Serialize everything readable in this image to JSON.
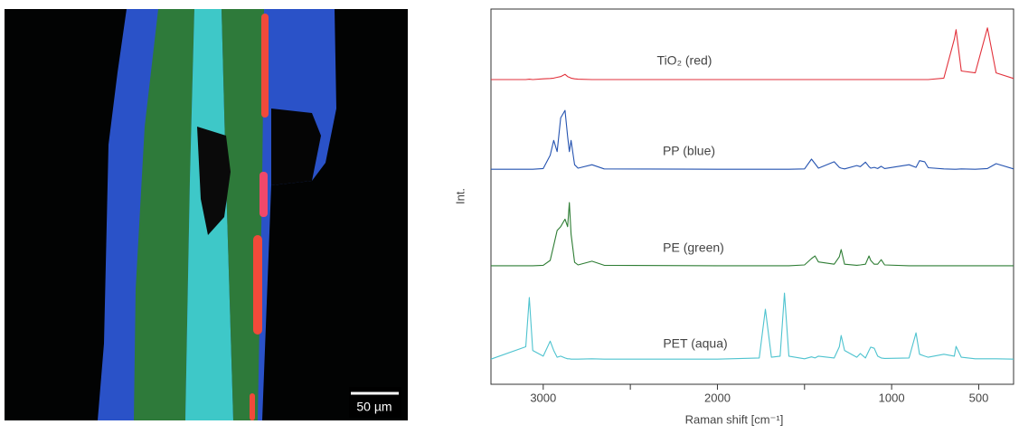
{
  "image": {
    "scale_bar": "50 µm"
  },
  "chart_data": {
    "type": "line",
    "xlabel": "Raman shift [cm⁻¹]",
    "ylabel": "Int.",
    "xlim": [
      3300,
      300
    ],
    "ylim": [
      0,
      100
    ],
    "xticks": [
      3000,
      2000,
      1000,
      500
    ],
    "xminorticks": [
      2500,
      1500
    ],
    "x": [
      3300,
      3100,
      3080,
      3060,
      3000,
      2960,
      2940,
      2920,
      2900,
      2875,
      2860,
      2850,
      2840,
      2820,
      2800,
      2720,
      2650,
      2000,
      1760,
      1725,
      1690,
      1640,
      1615,
      1590,
      1500,
      1460,
      1440,
      1420,
      1330,
      1300,
      1290,
      1270,
      1200,
      1180,
      1150,
      1130,
      1120,
      1100,
      1080,
      1060,
      1040,
      900,
      860,
      840,
      810,
      790,
      700,
      640,
      630,
      600,
      520,
      450,
      400,
      300
    ],
    "series": [
      {
        "name": "TiO₂ (red)",
        "color": "#e2323c",
        "values": [
          81.2,
          81.2,
          81.3,
          81.2,
          81.4,
          81.5,
          81.6,
          81.8,
          82.0,
          82.6,
          82.0,
          81.8,
          81.6,
          81.4,
          81.3,
          81.2,
          81.2,
          81.2,
          81.2,
          81.2,
          81.2,
          81.2,
          81.2,
          81.2,
          81.2,
          81.2,
          81.2,
          81.2,
          81.2,
          81.2,
          81.2,
          81.2,
          81.2,
          81.2,
          81.2,
          81.2,
          81.2,
          81.2,
          81.2,
          81.2,
          81.2,
          81.2,
          81.2,
          81.2,
          81.2,
          81.2,
          81.6,
          92.0,
          94.5,
          83.5,
          83.0,
          95.0,
          83.0,
          81.5
        ]
      },
      {
        "name": "PP (blue)",
        "color": "#2553b0",
        "values": [
          57.3,
          57.3,
          57.3,
          57.3,
          57.5,
          61.0,
          65.0,
          62.0,
          71.0,
          73.0,
          66.0,
          62.0,
          65.0,
          58.5,
          57.6,
          58.5,
          57.4,
          57.3,
          57.3,
          57.3,
          57.3,
          57.3,
          57.3,
          57.3,
          57.4,
          60.0,
          58.8,
          57.6,
          59.3,
          57.8,
          57.6,
          57.4,
          58.3,
          58.0,
          59.2,
          58.0,
          57.6,
          57.8,
          57.5,
          58.1,
          57.5,
          58.5,
          57.8,
          59.6,
          59.3,
          57.7,
          57.4,
          57.3,
          57.3,
          57.4,
          57.3,
          57.5,
          58.8,
          57.4
        ]
      },
      {
        "name": "PE (green)",
        "color": "#2e7d34",
        "values": [
          31.6,
          31.6,
          31.6,
          31.6,
          31.7,
          33.0,
          37.0,
          41.0,
          42.0,
          44.0,
          42.0,
          48.4,
          40.0,
          32.5,
          31.8,
          32.8,
          31.7,
          31.6,
          31.6,
          31.6,
          31.6,
          31.6,
          31.6,
          31.6,
          31.8,
          33.5,
          34.2,
          32.6,
          32.0,
          34.0,
          35.9,
          32.0,
          31.7,
          31.8,
          32.0,
          34.2,
          33.0,
          32.0,
          32.0,
          33.2,
          31.8,
          31.6,
          31.6,
          31.6,
          31.6,
          31.6,
          31.6,
          31.6,
          31.6,
          31.6,
          31.6,
          31.6,
          31.6,
          31.6
        ]
      },
      {
        "name": "PET (aqua)",
        "color": "#4ec3cf",
        "values": [
          6.7,
          10.0,
          23.1,
          9.0,
          7.5,
          11.5,
          9.0,
          7.2,
          7.5,
          7.0,
          6.8,
          6.8,
          6.7,
          6.7,
          6.7,
          6.8,
          6.7,
          6.7,
          7.0,
          20.0,
          7.2,
          7.5,
          24.3,
          7.5,
          6.8,
          7.3,
          7.0,
          7.5,
          7.0,
          10.0,
          13.0,
          9.0,
          7.2,
          8.2,
          7.0,
          9.0,
          9.9,
          9.6,
          7.5,
          7.0,
          6.9,
          7.0,
          13.7,
          8.0,
          7.5,
          7.2,
          8.0,
          7.5,
          10.1,
          7.2,
          6.8,
          6.8,
          6.8,
          6.7
        ]
      }
    ]
  }
}
